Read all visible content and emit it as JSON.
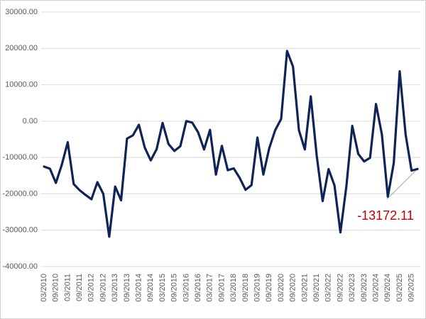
{
  "chart_data": {
    "type": "line",
    "categories": [
      "03/2010",
      null,
      "09/2010",
      null,
      "03/2011",
      null,
      "09/2011",
      null,
      "03/2012",
      null,
      "09/2012",
      null,
      "03/2013",
      null,
      "09/2013",
      null,
      "03/2014",
      null,
      "09/2014",
      null,
      "03/2015",
      null,
      "09/2015",
      null,
      "03/2016",
      null,
      "09/2016",
      null,
      "03/2017",
      null,
      "09/2017",
      null,
      "03/2018",
      null,
      "09/2018",
      null,
      "03/2019",
      null,
      "09/2019",
      null,
      "03/2020",
      null,
      "09/2020",
      null,
      "03/2021",
      null,
      "09/2021",
      null,
      "03/2022",
      null,
      "09/2022",
      null,
      "03/2023",
      null,
      "09/2023",
      null,
      "03/2024",
      null,
      "09/2024",
      null,
      "03/2025",
      null,
      "09/2025",
      null
    ],
    "values": [
      -12500,
      -13100,
      -17000,
      -12000,
      -5800,
      -17300,
      -19000,
      -20300,
      -21500,
      -16800,
      -20000,
      -31800,
      -18000,
      -21800,
      -4800,
      -3900,
      -1000,
      -7300,
      -10800,
      -7700,
      -500,
      -6300,
      -8200,
      -6900,
      0,
      -400,
      -3100,
      -7800,
      -2400,
      -14700,
      -6800,
      -13500,
      -13000,
      -15600,
      -18900,
      -17600,
      -4500,
      -14700,
      -7400,
      -2500,
      600,
      19300,
      15000,
      -2500,
      -7800,
      6800,
      -9500,
      -22000,
      -13200,
      -17700,
      -30600,
      -18000,
      -1300,
      -9000,
      -11100,
      -10100,
      4700,
      -3700,
      -20800,
      -11500,
      13700,
      -3700,
      -13600,
      -13172.11
    ],
    "color": "#0e2356",
    "annotation_color": "#c00000",
    "ylim": [
      -40000,
      30000
    ],
    "yticks": [
      {
        "value": -40000,
        "label": "-40000.00"
      },
      {
        "value": -30000,
        "label": "-30000.00"
      },
      {
        "value": -20000,
        "label": "-20000.00"
      },
      {
        "value": -10000,
        "label": "-10000.00"
      },
      {
        "value": 0,
        "label": "0.00"
      },
      {
        "value": 10000,
        "label": "10000.00"
      },
      {
        "value": 20000,
        "label": "20000.00"
      },
      {
        "value": 30000,
        "label": "30000.00"
      }
    ],
    "grid": true
  }
}
